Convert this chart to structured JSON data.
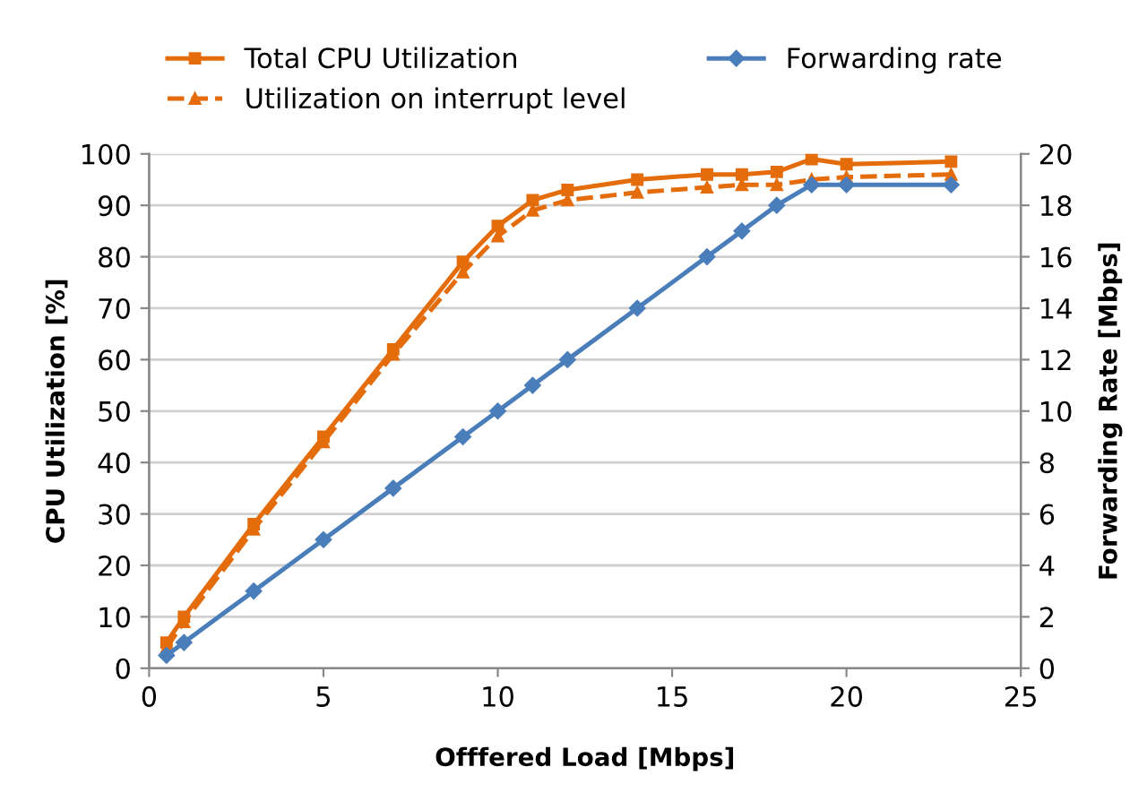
{
  "chart_data": {
    "type": "line",
    "xlabel": "Offfered Load [Mbps]",
    "ylabel": "CPU Utilization [%]",
    "y2label": "Forwarding Rate [Mbps]",
    "x": [
      0.5,
      1,
      3,
      5,
      7,
      9,
      10,
      11,
      12,
      14,
      16,
      17,
      18,
      19,
      20,
      23
    ],
    "series": [
      {
        "name": "Total CPU Utilization",
        "color": "#e46c0a",
        "marker": "square",
        "line_style": "solid",
        "values": [
          5,
          10,
          28,
          45,
          62,
          79,
          86,
          91,
          93,
          95,
          96,
          96,
          96.5,
          99,
          98,
          98.5
        ]
      },
      {
        "name": "Utilization on interrupt level",
        "color": "#e46c0a",
        "marker": "triangle",
        "line_style": "dashed",
        "values": [
          4,
          9,
          27,
          44,
          61,
          77,
          84,
          89,
          91,
          92.5,
          93.5,
          94,
          94,
          95,
          95.5,
          96
        ]
      },
      {
        "name": "Forwarding rate",
        "color": "#4a7ebb",
        "marker": "diamond",
        "line_style": "solid",
        "axis": "y2",
        "values": [
          0.5,
          1,
          3,
          5,
          7,
          9,
          10,
          11,
          12,
          14,
          16,
          17,
          18,
          18.8,
          18.8,
          18.8
        ]
      }
    ],
    "xlim": [
      0,
      25
    ],
    "xticks": [
      0,
      5,
      10,
      15,
      20,
      25
    ],
    "ylim": [
      0,
      100
    ],
    "yticks": [
      0,
      10,
      20,
      30,
      40,
      50,
      60,
      70,
      80,
      90,
      100
    ],
    "y2lim": [
      0,
      20
    ],
    "y2ticks": [
      0,
      2,
      4,
      6,
      8,
      10,
      12,
      14,
      16,
      18,
      20
    ],
    "grid": "y",
    "legend": "top"
  }
}
